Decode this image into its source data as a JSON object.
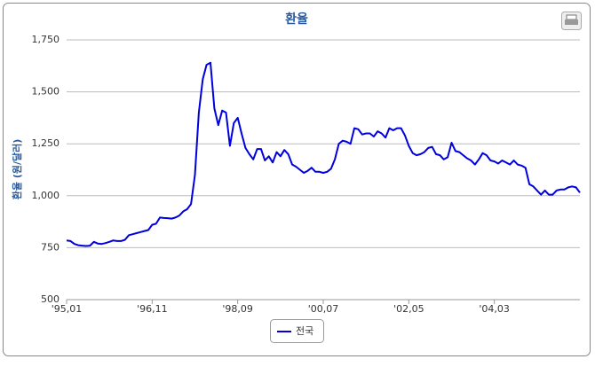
{
  "chart_data": {
    "type": "line",
    "title": "환율",
    "y_label": "환율 (원/달러)",
    "categories": [
      "'95,01",
      null,
      null,
      null,
      null,
      null,
      null,
      null,
      null,
      null,
      null,
      null,
      null,
      null,
      null,
      null,
      null,
      null,
      null,
      null,
      null,
      null,
      "'96,11",
      null,
      null,
      null,
      null,
      null,
      null,
      null,
      null,
      null,
      null,
      null,
      null,
      null,
      null,
      null,
      null,
      null,
      null,
      null,
      null,
      null,
      "'98,09",
      null,
      null,
      null,
      null,
      null,
      null,
      null,
      null,
      null,
      null,
      null,
      null,
      null,
      null,
      null,
      null,
      null,
      null,
      null,
      null,
      null,
      "'00,07",
      null,
      null,
      null,
      null,
      null,
      null,
      null,
      null,
      null,
      null,
      null,
      null,
      null,
      null,
      null,
      null,
      null,
      null,
      null,
      null,
      null,
      "'02,05",
      null,
      null,
      null,
      null,
      null,
      null,
      null,
      null,
      null,
      null,
      null,
      null,
      null,
      null,
      null,
      null,
      null,
      null,
      null,
      null,
      null,
      "'04,03",
      null,
      null,
      null,
      null,
      null,
      null,
      null,
      null,
      null,
      null,
      null,
      null,
      null,
      null,
      null,
      null,
      null,
      null,
      null,
      null,
      null,
      null
    ],
    "series": [
      {
        "name": "전국",
        "color": "#0000dd",
        "values": [
          785,
          782,
          768,
          762,
          760,
          758,
          760,
          778,
          770,
          768,
          772,
          778,
          785,
          782,
          782,
          788,
          810,
          815,
          820,
          825,
          830,
          835,
          860,
          865,
          895,
          893,
          892,
          890,
          895,
          905,
          925,
          935,
          960,
          1100,
          1400,
          1560,
          1630,
          1640,
          1420,
          1340,
          1410,
          1400,
          1240,
          1350,
          1375,
          1300,
          1230,
          1200,
          1175,
          1225,
          1225,
          1170,
          1190,
          1160,
          1210,
          1190,
          1220,
          1200,
          1150,
          1140,
          1125,
          1110,
          1120,
          1135,
          1115,
          1115,
          1110,
          1115,
          1130,
          1175,
          1250,
          1265,
          1260,
          1250,
          1325,
          1320,
          1295,
          1300,
          1300,
          1285,
          1310,
          1300,
          1280,
          1325,
          1315,
          1325,
          1325,
          1290,
          1240,
          1205,
          1195,
          1200,
          1210,
          1230,
          1235,
          1200,
          1195,
          1175,
          1185,
          1255,
          1215,
          1210,
          1195,
          1180,
          1170,
          1150,
          1175,
          1205,
          1195,
          1170,
          1165,
          1155,
          1170,
          1160,
          1150,
          1170,
          1150,
          1145,
          1135,
          1055,
          1045,
          1025,
          1005,
          1025,
          1005,
          1005,
          1025,
          1030,
          1030,
          1040,
          1045,
          1040,
          1015
        ]
      }
    ],
    "ylim": [
      500,
      1750
    ],
    "yticks": [
      500,
      750,
      {
        "value": 1000,
        "label": "1,000"
      },
      {
        "value": 1250,
        "label": "1,250"
      },
      {
        "value": 1500,
        "label": "1,500"
      },
      {
        "value": 1750,
        "label": "1,750"
      }
    ],
    "grid": true,
    "legend": "bottom"
  }
}
